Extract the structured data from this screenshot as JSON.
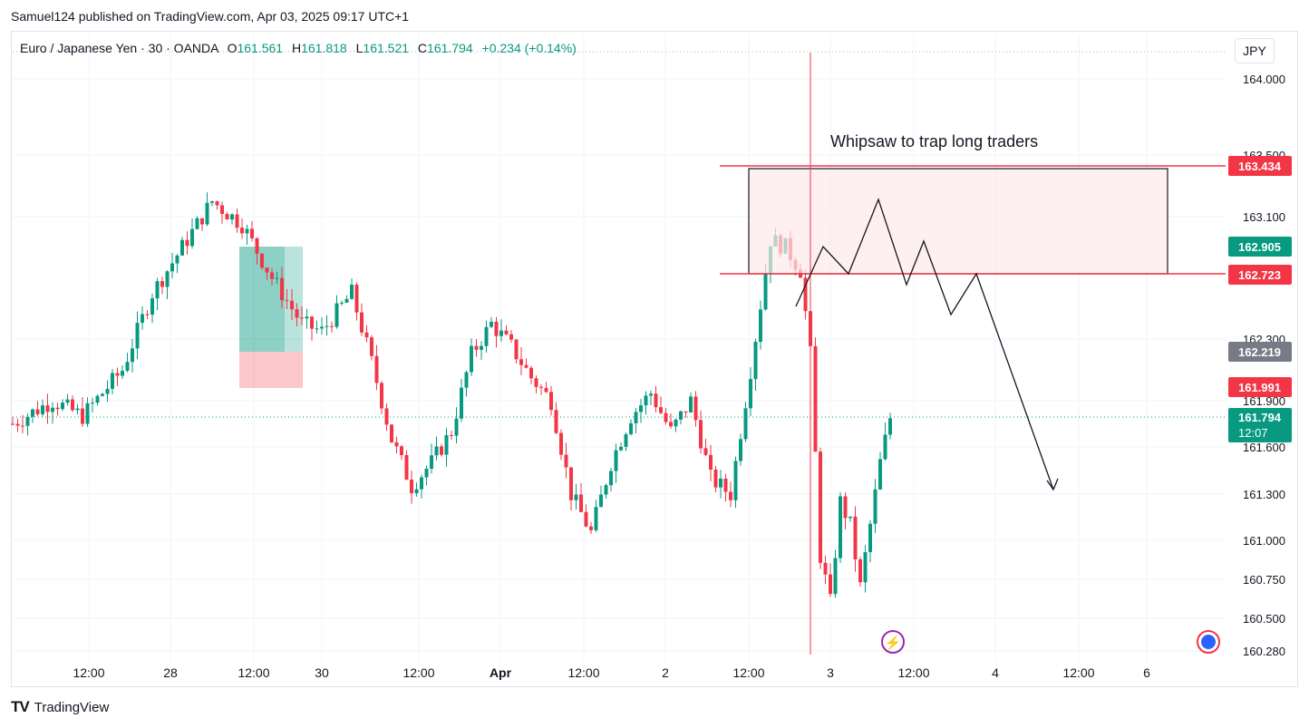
{
  "header": {
    "published_by": "Samuel124 published on TradingView.com, Apr 03, 2025 09:17 UTC+1"
  },
  "legend": {
    "symbol": "Euro / Japanese Yen · 30 · OANDA",
    "open_label": "O",
    "open": "161.561",
    "high_label": "H",
    "high": "161.818",
    "low_label": "L",
    "low": "161.521",
    "close_label": "C",
    "close": "161.794",
    "change": "+0.234 (+0.14%)"
  },
  "currency": "JPY",
  "brand": {
    "logo": "TV",
    "name": "TradingView"
  },
  "colors": {
    "up": "#089981",
    "down": "#f23645",
    "level": "#f23645",
    "box_fill": "#fde8ea",
    "crosshair": "#f23645"
  },
  "chart_data": {
    "type": "candlestick",
    "symbol": "EURJPY",
    "timeframe": "30",
    "ylim": [
      160.28,
      164.2
    ],
    "y_ticks": [
      "164.000",
      "163.500",
      "163.100",
      "162.300",
      "161.900",
      "161.600",
      "161.300",
      "161.000",
      "160.750",
      "160.500",
      "160.280"
    ],
    "x_ticks": [
      "12:00",
      "28",
      "12:00",
      "30",
      "12:00",
      "Apr",
      "12:00",
      "2",
      "12:00",
      "3",
      "12:00",
      "4",
      "12:00",
      "6"
    ],
    "price_labels": [
      {
        "value": "163.434",
        "color": "#f23645"
      },
      {
        "value": "162.905",
        "color": "#089981"
      },
      {
        "value": "162.723",
        "color": "#f23645"
      },
      {
        "value": "162.219",
        "color": "#787b86"
      },
      {
        "value": "161.991",
        "color": "#f23645"
      },
      {
        "value": "161.794",
        "countdown": "12:07",
        "color": "#089981"
      }
    ],
    "annotation": "Whipsaw to trap long traders",
    "resistance_zone": [
      162.723,
      163.434
    ],
    "last_price": 161.794,
    "price_path": [
      [
        0,
        161.75
      ],
      [
        8,
        161.9
      ],
      [
        14,
        161.8
      ],
      [
        22,
        162.1
      ],
      [
        28,
        162.6
      ],
      [
        34,
        162.9
      ],
      [
        40,
        163.2
      ],
      [
        46,
        163.05
      ],
      [
        52,
        162.7
      ],
      [
        58,
        162.4
      ],
      [
        62,
        162.35
      ],
      [
        68,
        162.6
      ],
      [
        72,
        162.15
      ],
      [
        76,
        161.65
      ],
      [
        80,
        161.35
      ],
      [
        84,
        161.5
      ],
      [
        88,
        161.7
      ],
      [
        92,
        162.2
      ],
      [
        96,
        162.4
      ],
      [
        100,
        162.25
      ],
      [
        104,
        162.05
      ],
      [
        108,
        161.9
      ],
      [
        112,
        161.3
      ],
      [
        116,
        161.05
      ],
      [
        120,
        161.5
      ],
      [
        124,
        161.8
      ],
      [
        128,
        161.95
      ],
      [
        132,
        161.7
      ],
      [
        136,
        161.9
      ],
      [
        140,
        161.4
      ],
      [
        144,
        161.3
      ],
      [
        148,
        162.1
      ],
      [
        152,
        162.95
      ],
      [
        155,
        162.9
      ],
      [
        158,
        162.75
      ],
      [
        160,
        162.2
      ],
      [
        162,
        160.9
      ],
      [
        164,
        160.6
      ],
      [
        166,
        161.25
      ],
      [
        168,
        161.1
      ],
      [
        170,
        160.7
      ],
      [
        172,
        161.1
      ],
      [
        174,
        161.5
      ],
      [
        176,
        161.79
      ]
    ],
    "boxes": [
      {
        "kind": "long-position-profit",
        "color": "#089981"
      },
      {
        "kind": "long-position-stop",
        "color": "#f23645"
      }
    ]
  }
}
